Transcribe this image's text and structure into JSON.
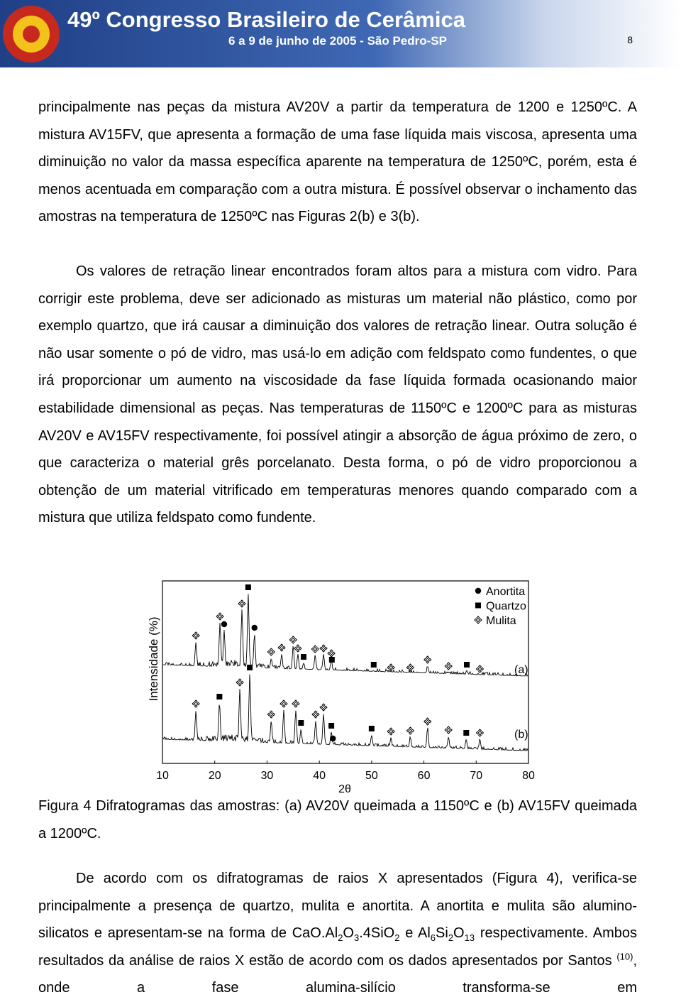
{
  "header": {
    "title": "49º Congresso Brasileiro de Cerâmica",
    "subtitle": "6 a 9 de junho de 2005 - São Pedro-SP",
    "page": "8"
  },
  "paragraphs": [
    "principalmente nas peças da mistura AV20V a partir da temperatura de 1200 e 1250ºC. A mistura AV15FV, que apresenta a formação de uma fase líquida mais viscosa, apresenta uma diminuição no valor da massa específica aparente na temperatura de 1250ºC, porém, esta é menos acentuada em comparação com a outra mistura. É possível observar o inchamento das amostras na temperatura de 1250ºC nas Figuras 2(b) e 3(b).",
    "Os valores de retração linear encontrados foram altos para a mistura com vidro. Para corrigir este problema, deve ser adicionado as misturas um material não plástico, como por exemplo quartzo, que irá causar a diminuição dos valores de retração linear. Outra solução é não usar somente o pó de vidro, mas usá-lo em adição com feldspato como fundentes, o que irá proporcionar um aumento na viscosidade da fase líquida formada ocasionando maior estabilidade dimensional as peças. Nas temperaturas de 1150ºC e 1200ºC para as misturas AV20V e AV15FV respectivamente, foi possível atingir a absorção de água próximo de zero, o que caracteriza o material grês porcelanato. Desta forma, o pó de vidro proporcionou a obtenção de um material vitrificado em temperaturas menores quando comparado com a mistura que utiliza feldspato como fundente."
  ],
  "figure": {
    "ylabel": "Intensidade (%)",
    "xlabel": "2θ",
    "xlim": [
      10,
      80
    ],
    "xticks": [
      10,
      20,
      30,
      40,
      50,
      60,
      70,
      80
    ],
    "legend": [
      "Anortita",
      "Quartzo",
      "Mulita"
    ],
    "patterns": [
      {
        "label": "(a)",
        "markers": [
          [
            21.8,
            27.6
          ],
          [
            26.4,
            37.0,
            42.4,
            50.4,
            68.2
          ],
          [
            16.4,
            21.0,
            25.2,
            30.8,
            32.8,
            35.0,
            35.9,
            39.2,
            40.8,
            42.3,
            53.7,
            57.4,
            60.7,
            64.7,
            70.7
          ]
        ]
      },
      {
        "label": "(b)",
        "markers": [
          [
            42.6
          ],
          [
            20.9,
            26.7,
            36.5,
            42.3,
            50.0,
            68.1
          ],
          [
            16.4,
            24.8,
            30.8,
            33.2,
            35.5,
            39.3,
            40.8,
            53.7,
            57.4,
            60.7,
            64.7,
            70.7
          ]
        ]
      }
    ],
    "caption": "Figura 4   Difratogramas das amostras: (a) AV20V queimada a 1150ºC e (b) AV15FV queimada a 1200ºC."
  },
  "closing": [
    {
      "text": "De acordo com os difratogramas de raios X apresentados (Figura 4), verifica-se principalmente a presença de quartzo, mulita e anortita. A anortita e mulita são alumino-silicatos e apresentam-se na forma de CaO.Al"
    },
    {
      "text": "2",
      "style": "sub"
    },
    {
      "text": "O"
    },
    {
      "text": "3",
      "style": "sub"
    },
    {
      "text": ".4SiO"
    },
    {
      "text": "2",
      "style": "sub"
    },
    {
      "text": " e Al"
    },
    {
      "text": "6",
      "style": "sub"
    },
    {
      "text": "Si"
    },
    {
      "text": "2",
      "style": "sub"
    },
    {
      "text": "O"
    },
    {
      "text": "13",
      "style": "sub"
    },
    {
      "text": " respectivamente. Ambos resultados da análise de raios X estão de acordo com os dados apresentados por Santos "
    },
    {
      "text": "(10)",
      "style": "sup"
    },
    {
      "text": ", onde a fase alumina-silício transforma-se em"
    }
  ]
}
